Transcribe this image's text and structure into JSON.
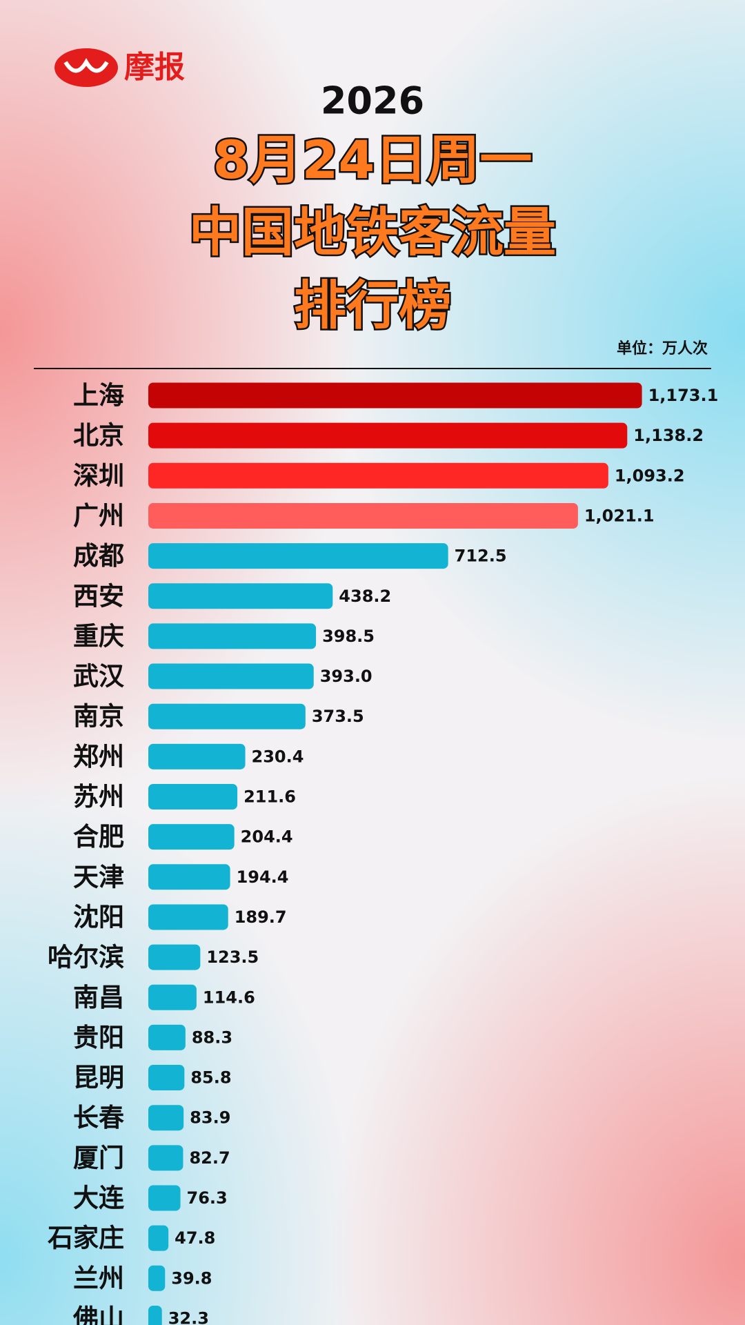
{
  "chart_data": {
    "type": "bar",
    "orientation": "horizontal",
    "brand": "摩报",
    "title": [
      "2026",
      "8月24日周一",
      "中国地铁客流量",
      "排行榜"
    ],
    "unit": "单位：万人次",
    "categories": [
      "上海",
      "北京",
      "深圳",
      "广州",
      "成都",
      "西安",
      "重庆",
      "武汉",
      "南京",
      "郑州",
      "苏州",
      "合肥",
      "天津",
      "沈阳",
      "哈尔滨",
      "南昌",
      "贵阳",
      "昆明",
      "长春",
      "厦门",
      "大连",
      "石家庄",
      "兰州",
      "佛山"
    ],
    "values": [
      1173.1,
      1138.2,
      1093.2,
      1021.1,
      712.5,
      438.2,
      398.5,
      393.0,
      373.5,
      230.4,
      211.6,
      204.4,
      194.4,
      189.7,
      123.5,
      114.6,
      88.3,
      85.8,
      83.9,
      82.7,
      76.3,
      47.8,
      39.8,
      32.3
    ],
    "value_labels": [
      "1,173.1",
      "1,138.2",
      "1,093.2",
      "1,021.1",
      "712.5",
      "438.2",
      "398.5",
      "393.0",
      "373.5",
      "230.4",
      "211.6",
      "204.4",
      "194.4",
      "189.7",
      "123.5",
      "114.6",
      "88.3",
      "85.8",
      "83.9",
      "82.7",
      "76.3",
      "47.8",
      "39.8",
      "32.3"
    ],
    "colors": [
      "#c40404",
      "#e20a0a",
      "#ff2626",
      "#ff5c5c",
      "#13b4d3",
      "#13b4d3",
      "#13b4d3",
      "#13b4d3",
      "#13b4d3",
      "#13b4d3",
      "#13b4d3",
      "#13b4d3",
      "#13b4d3",
      "#13b4d3",
      "#13b4d3",
      "#13b4d3",
      "#13b4d3",
      "#13b4d3",
      "#13b4d3",
      "#13b4d3",
      "#13b4d3",
      "#13b4d3",
      "#13b4d3",
      "#13b4d3"
    ]
  }
}
